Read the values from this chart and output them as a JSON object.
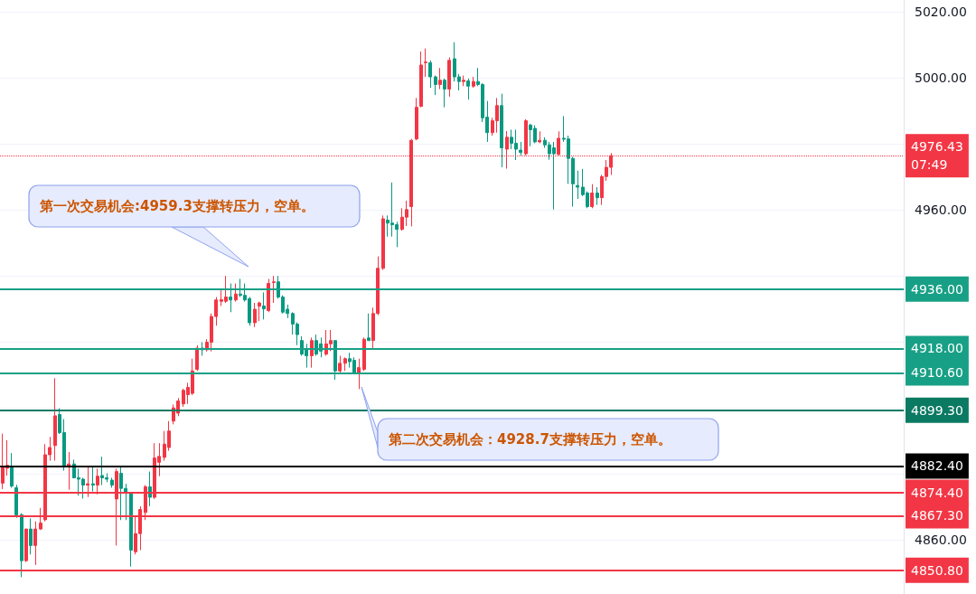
{
  "chart_data": {
    "type": "candlestick",
    "categories": [
      null,
      null,
      null,
      null,
      null,
      null,
      null,
      null,
      null,
      null,
      null,
      null,
      null,
      null,
      null,
      null,
      null,
      null,
      null,
      null,
      null,
      null,
      null,
      null,
      null,
      null,
      null,
      null,
      null,
      null,
      null,
      null,
      null,
      null,
      null,
      null,
      null,
      null,
      null,
      null,
      null,
      null,
      null,
      null,
      null,
      null,
      null,
      null,
      null,
      null,
      null,
      null,
      null,
      null,
      null,
      null,
      null,
      null,
      null,
      null,
      null,
      null,
      null,
      null,
      null,
      null,
      null,
      null,
      null,
      null,
      null,
      null,
      null,
      null,
      null,
      null,
      null,
      null,
      null,
      null,
      null,
      null,
      null,
      null,
      null,
      null,
      null,
      null,
      null,
      null,
      null,
      null,
      null,
      null,
      null,
      null,
      null,
      null,
      null,
      null,
      null,
      null,
      null,
      null,
      null,
      null,
      null,
      null,
      null,
      null,
      null,
      null,
      null,
      null,
      null,
      null,
      null,
      null,
      null,
      null,
      null,
      null,
      null,
      null,
      null,
      null,
      null,
      null,
      null,
      null,
      null,
      null,
      null,
      null,
      null,
      null,
      null,
      null,
      null,
      null,
      null,
      null,
      null,
      null,
      null,
      null,
      null,
      null,
      null,
      null,
      null,
      null,
      null,
      null,
      null,
      null,
      null,
      null,
      null,
      null,
      null,
      null,
      null,
      null,
      null,
      null,
      null,
      null,
      null,
      null,
      null,
      null,
      null,
      null,
      null,
      null,
      null,
      null,
      null,
      null,
      null,
      null,
      null,
      null,
      null,
      null,
      null,
      null,
      null,
      null
    ],
    "ohlc": [
      [
        4877.2,
        4892.2,
        4875.4,
        4882.2
      ],
      [
        4881.7,
        4890.2,
        4879.5,
        4882.6
      ],
      [
        4882.2,
        4886.3,
        4875.8,
        4876.3
      ],
      [
        4875.8,
        4876.7,
        4866.7,
        4867.6
      ],
      [
        4867.6,
        4868.1,
        4848.7,
        4853.7
      ],
      [
        4853.7,
        4863.3,
        4853.3,
        4863.3
      ],
      [
        4863.3,
        4866.5,
        4855.6,
        4858.3
      ],
      [
        4858.3,
        4865.6,
        4852.4,
        4863.3
      ],
      [
        4863.3,
        4869.7,
        4863,
        4865.1
      ],
      [
        4866.1,
        4889,
        4865.6,
        4885.8
      ],
      [
        4885.8,
        4891.2,
        4884,
        4888
      ],
      [
        4888.6,
        4909,
        4884,
        4897.6
      ],
      [
        4898,
        4899.9,
        4892.1,
        4892.5
      ],
      [
        4892.5,
        4896.6,
        4881,
        4882.2
      ],
      [
        4882.2,
        4886.6,
        4875.2,
        4883
      ],
      [
        4883,
        4884.3,
        4878.8,
        4878.8
      ],
      [
        4878.8,
        4881.6,
        4873.4,
        4878.4
      ],
      [
        4878.4,
        4878.8,
        4872.5,
        4876.6
      ],
      [
        4876.6,
        4882,
        4873,
        4877
      ],
      [
        4877,
        4882.5,
        4874.7,
        4876.6
      ],
      [
        4876.6,
        4881.6,
        4873.8,
        4879.3
      ],
      [
        4879.5,
        4885.2,
        4876.6,
        4878.8
      ],
      [
        4878.8,
        4880.2,
        4877.5,
        4878.4
      ],
      [
        4878.1,
        4878.8,
        4875.8,
        4876.6
      ],
      [
        4872.4,
        4881.6,
        4858.3,
        4880.7
      ],
      [
        4880.2,
        4882,
        4866,
        4875.6
      ],
      [
        4875.6,
        4877,
        4866,
        4874.3
      ],
      [
        4874.3,
        4874.3,
        4851.9,
        4856.9
      ],
      [
        4856.4,
        4867.4,
        4855.6,
        4861.9
      ],
      [
        4861.9,
        4870.2,
        4856.9,
        4869.2
      ],
      [
        4868.3,
        4876.6,
        4866,
        4876.1
      ],
      [
        4876.1,
        4880.7,
        4870.2,
        4872.9
      ],
      [
        4872.9,
        4889.3,
        4872.4,
        4884.8
      ],
      [
        4883.5,
        4889.3,
        4879.3,
        4885.3
      ],
      [
        4885,
        4893,
        4884,
        4889
      ],
      [
        4888,
        4896,
        4887,
        4893
      ],
      [
        4896,
        4901,
        4895,
        4900
      ],
      [
        4898.4,
        4903,
        4897.5,
        4902.1
      ],
      [
        4901.2,
        4905.8,
        4900.3,
        4905.3
      ],
      [
        4904,
        4907.6,
        4901.2,
        4906.2
      ],
      [
        4904.4,
        4914.9,
        4903.9,
        4911.2
      ],
      [
        4911.7,
        4919,
        4911.2,
        4918.1
      ],
      [
        4918.1,
        4919.9,
        4915.8,
        4917.6
      ],
      [
        4917.6,
        4920.8,
        4917.1,
        4919.9
      ],
      [
        4919.9,
        4928.6,
        4917.1,
        4927.7
      ],
      [
        4927.7,
        4933.6,
        4924.9,
        4932.7
      ],
      [
        4932.3,
        4935.9,
        4930.9,
        4932.8
      ],
      [
        4932.3,
        4940,
        4931.8,
        4933.6
      ],
      [
        4933.6,
        4937.7,
        4929,
        4932.7
      ],
      [
        4932.7,
        4937.7,
        4932.2,
        4934.5
      ],
      [
        4934.5,
        4939.1,
        4933.6,
        4934.1
      ],
      [
        4934.1,
        4937.7,
        4932.2,
        4932.7
      ],
      [
        4933.1,
        4933.6,
        4924.9,
        4925.8
      ],
      [
        4925.8,
        4931.8,
        4924.5,
        4929.9
      ],
      [
        4930.8,
        4932.2,
        4926.3,
        4931.8
      ],
      [
        4930.9,
        4935,
        4926.8,
        4930
      ],
      [
        4929.5,
        4939.1,
        4929,
        4937.7
      ],
      [
        4938,
        4940,
        4931.8,
        4938.2
      ],
      [
        4938.2,
        4940,
        4933.1,
        4933.6
      ],
      [
        4933.6,
        4934.1,
        4928.6,
        4929
      ],
      [
        4929.9,
        4931.3,
        4927.2,
        4928.6
      ],
      [
        4928.6,
        4929,
        4922.2,
        4925.4
      ],
      [
        4925.4,
        4925.9,
        4919,
        4922.2
      ],
      [
        4920.4,
        4921.7,
        4915.8,
        4916.3
      ],
      [
        4917.6,
        4919.4,
        4912.2,
        4915.8
      ],
      [
        4915.8,
        4921.3,
        4912.2,
        4920.4
      ],
      [
        4920.4,
        4922.2,
        4915.8,
        4916.3
      ],
      [
        4919.4,
        4921.3,
        4915.3,
        4917.2
      ],
      [
        4916.3,
        4923.6,
        4915.8,
        4919.4
      ],
      [
        4919.4,
        4923.6,
        4917.2,
        4920.4
      ],
      [
        4920.4,
        4920.4,
        4908.5,
        4911.2
      ],
      [
        4911.2,
        4915.8,
        4910.3,
        4913.5
      ],
      [
        4913.5,
        4915.3,
        4911.2,
        4914.9
      ],
      [
        4914.9,
        4916.7,
        4912.2,
        4914
      ],
      [
        4914.4,
        4915.3,
        4910.3,
        4910.3
      ],
      [
        4910.3,
        4914.9,
        4905.7,
        4912.2
      ],
      [
        4911.7,
        4921.3,
        4911.2,
        4920.8
      ],
      [
        4921.2,
        4928.6,
        4920.4,
        4920.4
      ],
      [
        4920.4,
        4930.4,
        4917.6,
        4928.6
      ],
      [
        4928.6,
        4945.9,
        4928.1,
        4942.3
      ],
      [
        4942.3,
        4958.3,
        4941.8,
        4957.3
      ],
      [
        4956.9,
        4958.3,
        4951.9,
        4956
      ],
      [
        4956,
        4968.3,
        4951.9,
        4955.5
      ],
      [
        4955.5,
        4956.4,
        4948.7,
        4954.1
      ],
      [
        4954.1,
        4960.5,
        4953.7,
        4957.8
      ],
      [
        4957.8,
        4962.8,
        4955.1,
        4960.1
      ],
      [
        4961,
        4981.5,
        4955,
        4981.1
      ],
      [
        4981.5,
        4993.9,
        4981.1,
        4991.1
      ],
      [
        4991.4,
        5008,
        4991.1,
        5003.9
      ],
      [
        5004.6,
        5008.9,
        5000.3,
        5004.8
      ],
      [
        5004.6,
        5005.3,
        4997,
        5000.3
      ],
      [
        5000.3,
        5000.7,
        4994.8,
        4998
      ],
      [
        4998,
        5003,
        4996.6,
        4999.3
      ],
      [
        4999.3,
        4999.8,
        4991.1,
        4996.6
      ],
      [
        4996.6,
        5006.2,
        4994.3,
        5005.3
      ],
      [
        5005.8,
        5010.8,
        4998.9,
        5000.3
      ],
      [
        5000.3,
        5001.2,
        4996.2,
        4998.9
      ],
      [
        4998.9,
        5000.7,
        4997.5,
        4999.3
      ],
      [
        4999.1,
        4999.8,
        4993.4,
        4997.5
      ],
      [
        4997.5,
        5000.3,
        4997,
        4998.9
      ],
      [
        4998.9,
        5003,
        4997.5,
        4998
      ],
      [
        4998,
        4998.4,
        4986.6,
        4987.9
      ],
      [
        4988.1,
        4993,
        4980.6,
        4983.4
      ],
      [
        4983.4,
        4987.9,
        4982.5,
        4987
      ],
      [
        4987,
        4993.9,
        4983.4,
        4991.6
      ],
      [
        4991.6,
        4995.2,
        4972.9,
        4978.8
      ],
      [
        4978.4,
        4983.9,
        4972.5,
        4982
      ],
      [
        4982,
        4984.3,
        4978.4,
        4980.2
      ],
      [
        4980.2,
        4984.3,
        4975.1,
        4978.4
      ],
      [
        4978.1,
        4980.6,
        4976.5,
        4977.4
      ],
      [
        4977,
        4987.5,
        4976.5,
        4987
      ],
      [
        4985.7,
        4986.1,
        4979.3,
        4984.3
      ],
      [
        4984.7,
        4985.6,
        4980.2,
        4980.6
      ],
      [
        4980.6,
        4983.8,
        4980.2,
        4981.1
      ],
      [
        4981.1,
        4982,
        4978.8,
        4979.7
      ],
      [
        4979.7,
        4980.6,
        4975.2,
        4977
      ],
      [
        4978.8,
        4980.6,
        4960.1,
        4977
      ],
      [
        4976.8,
        4983.8,
        4976.5,
        4981.7
      ],
      [
        4981.7,
        4988.4,
        4980.6,
        4981.4
      ],
      [
        4981.5,
        4982.5,
        4967.9,
        4975.6
      ],
      [
        4975.6,
        4976.1,
        4961,
        4967.9
      ],
      [
        4967.4,
        4971.9,
        4963.3,
        4966.9
      ],
      [
        4966.9,
        4972.4,
        4964.2,
        4964.6
      ],
      [
        4965.1,
        4965.6,
        4960.5,
        4961
      ],
      [
        4961,
        4967.8,
        4960.5,
        4965.1
      ],
      [
        4965.1,
        4966.9,
        4961.5,
        4963.7
      ],
      [
        4963.7,
        4970.6,
        4961.5,
        4970.1
      ],
      [
        4970.1,
        4975.1,
        4968.8,
        4972.9
      ],
      [
        4972.9,
        4977.2,
        4970.6,
        4976.43
      ],
      null,
      null,
      null,
      null,
      null,
      null,
      null,
      null,
      null,
      null,
      null,
      null,
      null,
      null,
      null,
      null,
      null,
      null,
      null,
      null,
      null,
      null,
      null,
      null,
      null,
      null,
      null,
      null,
      null,
      null,
      null,
      null,
      null,
      null,
      null,
      null,
      null,
      null,
      null,
      null,
      null,
      null,
      null,
      null,
      null,
      null,
      null,
      null,
      null,
      null,
      null,
      null,
      null,
      null,
      null,
      null,
      null,
      null,
      null,
      null,
      null
    ],
    "colors": [
      "#f23645",
      "#f23645",
      "#089981",
      "#089981",
      "#089981",
      "#f23645",
      "#089981",
      "#f23645",
      "#f23645",
      "#f23645",
      "#f23645",
      "#f23645",
      "#089981",
      "#089981",
      "#f23645",
      "#089981",
      "#089981",
      "#089981",
      "#f23645",
      "#089981",
      "#f23645",
      "#089981",
      "#089981",
      "#089981",
      "#f23645",
      "#089981",
      "#089981",
      "#089981",
      "#f23645",
      "#f23645",
      "#f23645",
      "#089981",
      "#f23645",
      "#f23645",
      "#f23645",
      "#f23645",
      "#f23645",
      "#f23645",
      "#f23645",
      "#f23645",
      "#f23645",
      "#f23645",
      "#089981",
      "#f23645",
      "#f23645",
      "#f23645",
      "#f23645",
      "#f23645",
      "#089981",
      "#f23645",
      "#089981",
      "#089981",
      "#089981",
      "#f23645",
      "#f23645",
      "#089981",
      "#f23645",
      "#f23645",
      "#089981",
      "#089981",
      "#089981",
      "#089981",
      "#089981",
      "#089981",
      "#089981",
      "#f23645",
      "#089981",
      "#089981",
      "#f23645",
      "#f23645",
      "#089981",
      "#f23645",
      "#f23645",
      "#089981",
      "#089981",
      "#f23645",
      "#f23645",
      "#089981",
      "#f23645",
      "#f23645",
      "#f23645",
      "#089981",
      "#089981",
      "#089981",
      "#f23645",
      "#f23645",
      "#f23645",
      "#f23645",
      "#f23645",
      "#f23645",
      "#089981",
      "#089981",
      "#f23645",
      "#089981",
      "#f23645",
      "#089981",
      "#089981",
      "#f23645",
      "#089981",
      "#f23645",
      "#089981",
      "#089981",
      "#089981",
      "#f23645",
      "#f23645",
      "#089981",
      "#f23645",
      "#089981",
      "#089981",
      "#089981",
      "#f23645",
      "#089981",
      "#089981",
      "#f23645",
      "#089981",
      "#089981",
      "#089981",
      "#f23645",
      "#089981",
      "#089981",
      "#089981",
      "#089981",
      "#089981",
      "#089981",
      "#f23645",
      "#089981",
      "#f23645",
      "#f23645",
      "#f23645",
      null,
      null,
      null,
      null,
      null,
      null,
      null,
      null,
      null,
      null,
      null,
      null,
      null,
      null,
      null,
      null,
      null,
      null,
      null,
      null,
      null,
      null,
      null,
      null,
      null,
      null,
      null,
      null,
      null,
      null,
      null,
      null,
      null,
      null,
      null,
      null,
      null,
      null,
      null,
      null,
      null,
      null,
      null,
      null,
      null,
      null,
      null,
      null,
      null,
      null,
      null,
      null,
      null,
      null,
      null,
      null,
      null,
      null,
      null,
      null,
      null
    ],
    "ylim": [
      4843.6,
      5023.6
    ],
    "yticks": [
      {
        "value": 4860,
        "label": "4860.00"
      },
      {
        "value": 4880,
        "label": null
      },
      {
        "value": 4900,
        "label": null
      },
      {
        "value": 4920,
        "label": null
      },
      {
        "value": 4940,
        "label": null
      },
      {
        "value": 4960,
        "label": "4960.00"
      },
      {
        "value": 4980,
        "label": null
      },
      {
        "value": 5000,
        "label": "5000.00"
      },
      {
        "value": 5020,
        "label": "5020.00"
      }
    ],
    "grid": "y",
    "tick_labels": "y",
    "ref_lines": [
      {
        "axis": "y",
        "value": 4976.43,
        "label": "4976.43\n07:49",
        "color": "#f23645",
        "line_style": "dotted"
      },
      {
        "axis": "y",
        "value": 4936,
        "label": "4936.00",
        "color": "#18a086",
        "line_style": "solid"
      },
      {
        "axis": "y",
        "value": 4918,
        "label": "4918.00",
        "color": "#18a086",
        "line_style": "solid"
      },
      {
        "axis": "y",
        "value": 4910.6,
        "label": "4910.60",
        "color": "#18a086",
        "line_style": "solid"
      },
      {
        "axis": "y",
        "value": 4899.3,
        "label": "4899.30",
        "color": "#0b7a63",
        "line_style": "solid"
      },
      {
        "axis": "y",
        "value": 4882.4,
        "label": "4882.40",
        "color": "#000000",
        "line_style": "solid"
      },
      {
        "axis": "y",
        "value": 4874.4,
        "label": "4874.40",
        "color": "#f23645",
        "line_style": "solid"
      },
      {
        "axis": "y",
        "value": 4867.3,
        "label": "4867.30",
        "color": "#f23645",
        "line_style": "solid"
      },
      {
        "axis": "y",
        "value": 4850.8,
        "label": "4850.80",
        "color": "#f23645",
        "line_style": "solid"
      }
    ],
    "annotations": [
      "第一次交易机会:4959.3支撑转压力，空单。",
      "第二次交易机会：4928.7支撑转压力，空单。"
    ]
  }
}
